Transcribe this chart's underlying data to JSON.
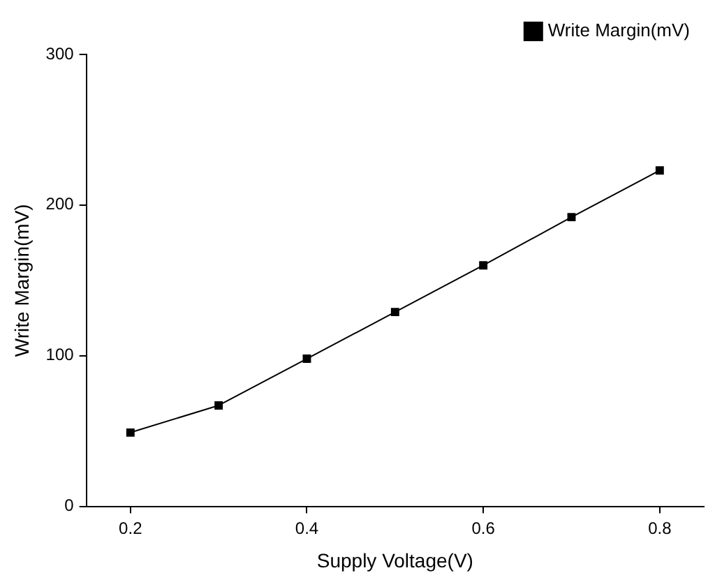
{
  "chart_data": {
    "type": "line",
    "xlabel": "Supply Voltage(V)",
    "ylabel": "Write Margin(mV)",
    "x": [
      0.2,
      0.3,
      0.4,
      0.5,
      0.6,
      0.7,
      0.8
    ],
    "series": [
      {
        "name": "Write Margin(mV)",
        "color": "#000000",
        "values": [
          49,
          67,
          98,
          129,
          160,
          192,
          223
        ]
      }
    ],
    "xlim": [
      0.15,
      0.85
    ],
    "xticks": [
      0.2,
      0.4,
      0.6,
      0.8
    ],
    "ylim": [
      0,
      300
    ],
    "yticks": [
      0,
      100,
      200,
      300
    ],
    "grid": false,
    "legend": "top right",
    "marker": "square",
    "line_style": "solid"
  }
}
